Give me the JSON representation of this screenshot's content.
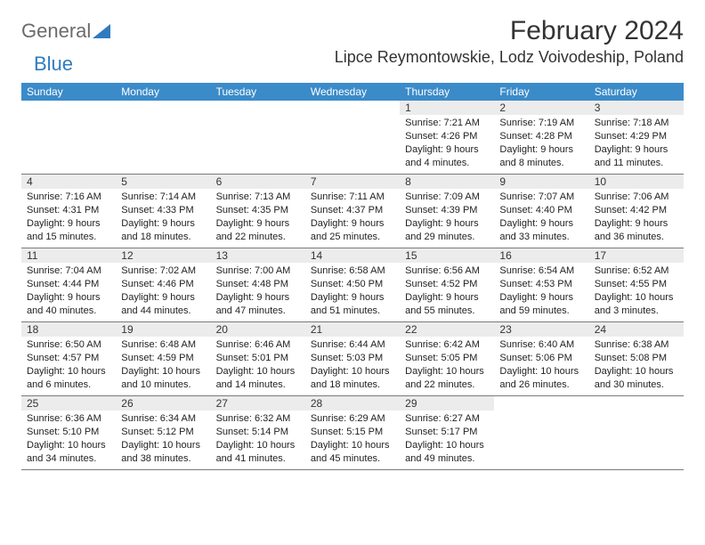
{
  "brand": {
    "part1": "General",
    "part2": "Blue"
  },
  "title": "February 2024",
  "location": "Lipce Reymontowskie, Lodz Voivodeship, Poland",
  "colors": {
    "header_bg": "#3b8bc9",
    "daynum_bg": "#ececec",
    "week_border": "#7a7a7a",
    "logo_gray": "#6b6b6b",
    "logo_blue": "#2f7bbf"
  },
  "weekdays": [
    "Sunday",
    "Monday",
    "Tuesday",
    "Wednesday",
    "Thursday",
    "Friday",
    "Saturday"
  ],
  "weeks": [
    [
      null,
      null,
      null,
      null,
      {
        "n": "1",
        "sr": "7:21 AM",
        "ss": "4:26 PM",
        "dl": "9 hours and 4 minutes."
      },
      {
        "n": "2",
        "sr": "7:19 AM",
        "ss": "4:28 PM",
        "dl": "9 hours and 8 minutes."
      },
      {
        "n": "3",
        "sr": "7:18 AM",
        "ss": "4:29 PM",
        "dl": "9 hours and 11 minutes."
      }
    ],
    [
      {
        "n": "4",
        "sr": "7:16 AM",
        "ss": "4:31 PM",
        "dl": "9 hours and 15 minutes."
      },
      {
        "n": "5",
        "sr": "7:14 AM",
        "ss": "4:33 PM",
        "dl": "9 hours and 18 minutes."
      },
      {
        "n": "6",
        "sr": "7:13 AM",
        "ss": "4:35 PM",
        "dl": "9 hours and 22 minutes."
      },
      {
        "n": "7",
        "sr": "7:11 AM",
        "ss": "4:37 PM",
        "dl": "9 hours and 25 minutes."
      },
      {
        "n": "8",
        "sr": "7:09 AM",
        "ss": "4:39 PM",
        "dl": "9 hours and 29 minutes."
      },
      {
        "n": "9",
        "sr": "7:07 AM",
        "ss": "4:40 PM",
        "dl": "9 hours and 33 minutes."
      },
      {
        "n": "10",
        "sr": "7:06 AM",
        "ss": "4:42 PM",
        "dl": "9 hours and 36 minutes."
      }
    ],
    [
      {
        "n": "11",
        "sr": "7:04 AM",
        "ss": "4:44 PM",
        "dl": "9 hours and 40 minutes."
      },
      {
        "n": "12",
        "sr": "7:02 AM",
        "ss": "4:46 PM",
        "dl": "9 hours and 44 minutes."
      },
      {
        "n": "13",
        "sr": "7:00 AM",
        "ss": "4:48 PM",
        "dl": "9 hours and 47 minutes."
      },
      {
        "n": "14",
        "sr": "6:58 AM",
        "ss": "4:50 PM",
        "dl": "9 hours and 51 minutes."
      },
      {
        "n": "15",
        "sr": "6:56 AM",
        "ss": "4:52 PM",
        "dl": "9 hours and 55 minutes."
      },
      {
        "n": "16",
        "sr": "6:54 AM",
        "ss": "4:53 PM",
        "dl": "9 hours and 59 minutes."
      },
      {
        "n": "17",
        "sr": "6:52 AM",
        "ss": "4:55 PM",
        "dl": "10 hours and 3 minutes."
      }
    ],
    [
      {
        "n": "18",
        "sr": "6:50 AM",
        "ss": "4:57 PM",
        "dl": "10 hours and 6 minutes."
      },
      {
        "n": "19",
        "sr": "6:48 AM",
        "ss": "4:59 PM",
        "dl": "10 hours and 10 minutes."
      },
      {
        "n": "20",
        "sr": "6:46 AM",
        "ss": "5:01 PM",
        "dl": "10 hours and 14 minutes."
      },
      {
        "n": "21",
        "sr": "6:44 AM",
        "ss": "5:03 PM",
        "dl": "10 hours and 18 minutes."
      },
      {
        "n": "22",
        "sr": "6:42 AM",
        "ss": "5:05 PM",
        "dl": "10 hours and 22 minutes."
      },
      {
        "n": "23",
        "sr": "6:40 AM",
        "ss": "5:06 PM",
        "dl": "10 hours and 26 minutes."
      },
      {
        "n": "24",
        "sr": "6:38 AM",
        "ss": "5:08 PM",
        "dl": "10 hours and 30 minutes."
      }
    ],
    [
      {
        "n": "25",
        "sr": "6:36 AM",
        "ss": "5:10 PM",
        "dl": "10 hours and 34 minutes."
      },
      {
        "n": "26",
        "sr": "6:34 AM",
        "ss": "5:12 PM",
        "dl": "10 hours and 38 minutes."
      },
      {
        "n": "27",
        "sr": "6:32 AM",
        "ss": "5:14 PM",
        "dl": "10 hours and 41 minutes."
      },
      {
        "n": "28",
        "sr": "6:29 AM",
        "ss": "5:15 PM",
        "dl": "10 hours and 45 minutes."
      },
      {
        "n": "29",
        "sr": "6:27 AM",
        "ss": "5:17 PM",
        "dl": "10 hours and 49 minutes."
      },
      null,
      null
    ]
  ],
  "labels": {
    "sunrise": "Sunrise:",
    "sunset": "Sunset:",
    "daylight": "Daylight:"
  }
}
